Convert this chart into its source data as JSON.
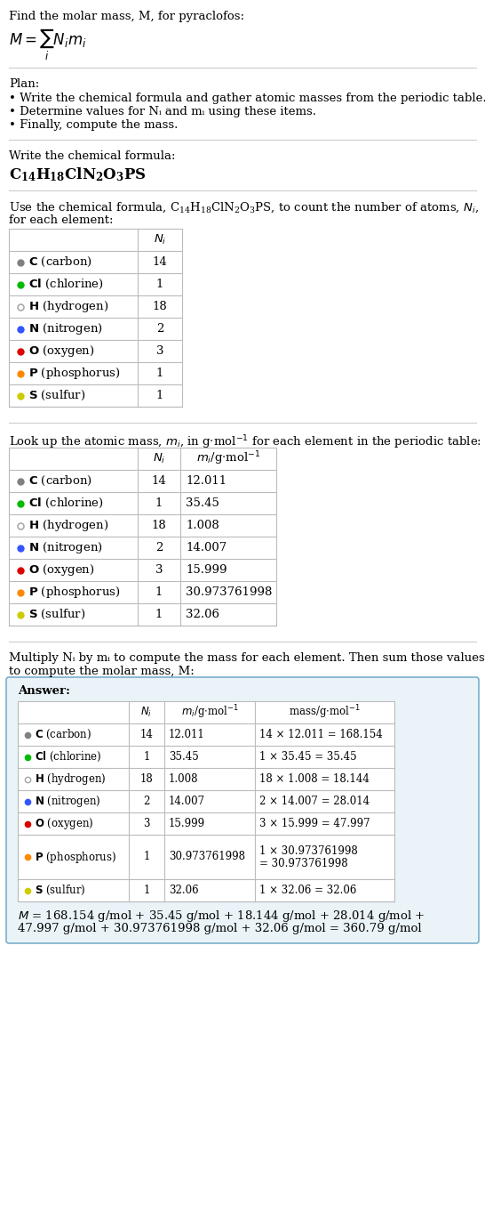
{
  "title_line1": "Find the molar mass, M, for pyraclofos:",
  "plan_header": "Plan:",
  "plan_bullets": [
    "Write the chemical formula and gather atomic masses from the periodic table.",
    "Determine values for Nᵢ and mᵢ using these items.",
    "Finally, compute the mass."
  ],
  "formula_section_header": "Write the chemical formula:",
  "table1_header_line1": "Use the chemical formula, C₁₄H₁₈ClN₂O₃PS, to count the number of atoms, Nᵢ,",
  "table1_header_line2": "for each element:",
  "table2_header": "Look up the atomic mass, mᵢ, in g·mol⁻¹ for each element in the periodic table:",
  "table3_header_line1": "Multiply Nᵢ by mᵢ to compute the mass for each element. Then sum those values",
  "table3_header_line2": "to compute the molar mass, M:",
  "answer_header": "Answer:",
  "elements": [
    {
      "symbol": "C",
      "name": "carbon",
      "color": "#808080",
      "filled": true,
      "Ni": 14,
      "mi": "12.011",
      "mass_line1": "14 × 12.011 = 168.154",
      "mass_line2": null
    },
    {
      "symbol": "Cl",
      "name": "chlorine",
      "color": "#00bb00",
      "filled": true,
      "Ni": 1,
      "mi": "35.45",
      "mass_line1": "1 × 35.45 = 35.45",
      "mass_line2": null
    },
    {
      "symbol": "H",
      "name": "hydrogen",
      "color": "#aaaaaa",
      "filled": false,
      "Ni": 18,
      "mi": "1.008",
      "mass_line1": "18 × 1.008 = 18.144",
      "mass_line2": null
    },
    {
      "symbol": "N",
      "name": "nitrogen",
      "color": "#3355ff",
      "filled": true,
      "Ni": 2,
      "mi": "14.007",
      "mass_line1": "2 × 14.007 = 28.014",
      "mass_line2": null
    },
    {
      "symbol": "O",
      "name": "oxygen",
      "color": "#dd0000",
      "filled": true,
      "Ni": 3,
      "mi": "15.999",
      "mass_line1": "3 × 15.999 = 47.997",
      "mass_line2": null
    },
    {
      "symbol": "P",
      "name": "phosphorus",
      "color": "#ff8800",
      "filled": true,
      "Ni": 1,
      "mi": "30.973761998",
      "mass_line1": "1 × 30.973761998",
      "mass_line2": "= 30.973761998"
    },
    {
      "symbol": "S",
      "name": "sulfur",
      "color": "#cccc00",
      "filled": true,
      "Ni": 1,
      "mi": "32.06",
      "mass_line1": "1 × 32.06 = 32.06",
      "mass_line2": null
    }
  ],
  "final_line1": "M = 168.154 g/mol + 35.45 g/mol + 18.144 g/mol + 28.014 g/mol +",
  "final_line2": "47.997 g/mol + 30.973761998 g/mol + 32.06 g/mol = 360.79 g/mol",
  "bg_color": "#ffffff",
  "answer_box_color": "#eaf4f8",
  "answer_box_border": "#7aafcc",
  "text_color": "#000000",
  "table_border_color": "#bbbbbb",
  "section_line_color": "#cccccc"
}
